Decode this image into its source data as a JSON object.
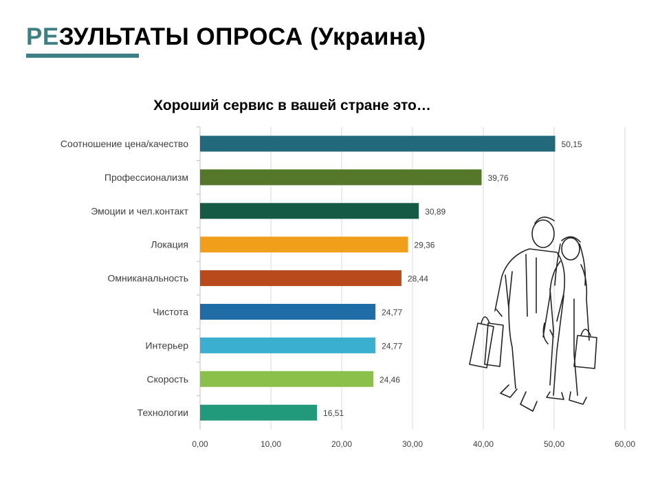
{
  "slide": {
    "title_accent": "РЕ",
    "title_rest": "ЗУЛЬТАТЫ ОПРОСА (Украина)",
    "accent_color": "#3e7f86"
  },
  "illustration": {
    "icon": "couple-shopping-sketch"
  },
  "chart_data": {
    "type": "bar",
    "orientation": "horizontal",
    "title": "Хороший сервис в вашей стране это…",
    "categories": [
      "Соотношение цена/качество",
      "Профессионализм",
      "Эмоции и чел.контакт",
      "Локация",
      "Омниканальность",
      "Чистота",
      "Интерьер",
      "Скорость",
      "Технологии"
    ],
    "values": [
      50.15,
      39.76,
      30.89,
      29.36,
      28.44,
      24.77,
      24.77,
      24.46,
      16.51
    ],
    "value_labels": [
      "50,15",
      "39,76",
      "30,89",
      "29,36",
      "28,44",
      "24,77",
      "24,77",
      "24,46",
      "16,51"
    ],
    "colors": [
      "#21697b",
      "#55772a",
      "#155a45",
      "#f19f1b",
      "#b94a1b",
      "#1f6ca6",
      "#3aafd0",
      "#8bc14b",
      "#21997b"
    ],
    "xlim": [
      0,
      60
    ],
    "xticks": [
      0,
      10,
      20,
      30,
      40,
      50,
      60
    ],
    "xtick_labels": [
      "0,00",
      "10,00",
      "20,00",
      "30,00",
      "40,00",
      "50,00",
      "60,00"
    ],
    "grid": true,
    "legend": "none",
    "xlabel": "",
    "ylabel": ""
  }
}
